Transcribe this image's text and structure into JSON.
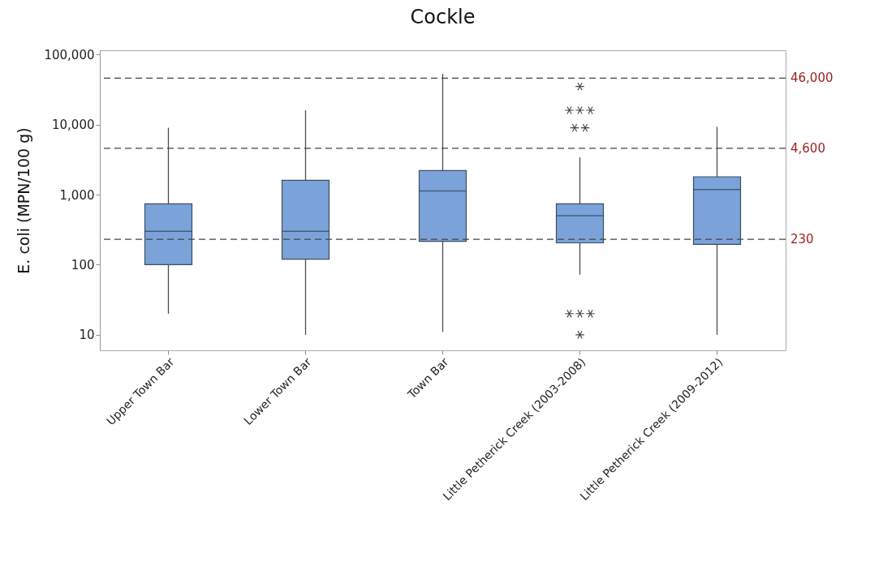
{
  "chart_data": {
    "type": "box",
    "title": "Cockle",
    "ylabel": "E. coli (MPN/100 g)",
    "categories": [
      "Upper Town Bar",
      "Lower Town Bar",
      "Town Bar",
      "Little Petherick Creek (2003-2008)",
      "Little Petherick Creek (2009-2012)"
    ],
    "color": "#7ba3d9",
    "boxes": [
      {
        "low": 20,
        "q1": 100,
        "median": 300,
        "q3": 740,
        "high": 9000
      },
      {
        "low": 10,
        "q1": 120,
        "median": 300,
        "q3": 1600,
        "high": 16000
      },
      {
        "low": 11,
        "q1": 215,
        "median": 1130,
        "q3": 2200,
        "high": 53000
      },
      {
        "low": 72,
        "q1": 205,
        "median": 500,
        "q3": 740,
        "high": 3400,
        "outliers": [
          35000,
          16000,
          16000,
          16000,
          9000,
          9000,
          20,
          20,
          20,
          10
        ]
      },
      {
        "low": 10,
        "q1": 195,
        "median": 1180,
        "q3": 1800,
        "high": 9300
      }
    ],
    "log": true,
    "ylim": [
      6,
      115000
    ],
    "yticks": [
      10,
      100,
      {
        "value": 1000,
        "label": "1,000"
      },
      {
        "value": 10000,
        "label": "10,000"
      },
      {
        "value": 100000,
        "label": "100,000"
      }
    ],
    "ref_lines": [
      {
        "axis": "y",
        "value": 46000,
        "label": "46,000",
        "line_style": "dashed"
      },
      {
        "axis": "y",
        "value": 4600,
        "label": "4,600",
        "line_style": "dashed"
      },
      {
        "axis": "y",
        "value": 230,
        "label": "230",
        "line_style": "dashed"
      }
    ]
  }
}
